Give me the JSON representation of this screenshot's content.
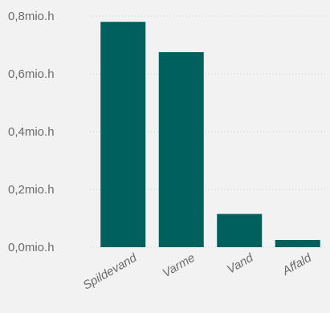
{
  "chart_data": {
    "type": "bar",
    "title": "",
    "xlabel": "",
    "ylabel": "",
    "categories": [
      "Spildevand",
      "Varme",
      "Vand",
      "Affald"
    ],
    "values": [
      0.78,
      0.675,
      0.115,
      0.025
    ],
    "unit": "mio.h",
    "ylim": [
      0,
      0.8
    ],
    "yticks": [
      {
        "value": 0.0,
        "label": "0,0mio.h"
      },
      {
        "value": 0.2,
        "label": "0,2mio.h"
      },
      {
        "value": 0.4,
        "label": "0,4mio.h"
      },
      {
        "value": 0.6,
        "label": "0,6mio.h"
      },
      {
        "value": 0.8,
        "label": "0,8mio.h"
      }
    ],
    "grid": true,
    "bar_color": "#00605e",
    "background_color": "#f2f2f2"
  }
}
